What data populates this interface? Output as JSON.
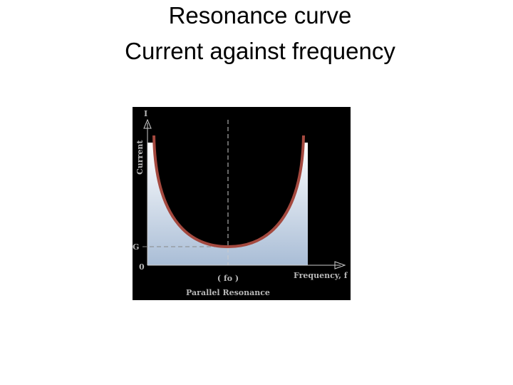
{
  "title": {
    "line1": "Resonance curve",
    "line2": "Current against frequency"
  },
  "diagram": {
    "y_axis": "I",
    "y_label": "Current",
    "level_label": "G",
    "origin": "0",
    "resonance_label": "( fo )",
    "x_axis": "Frequency, f",
    "caption": "Parallel Resonance"
  }
}
